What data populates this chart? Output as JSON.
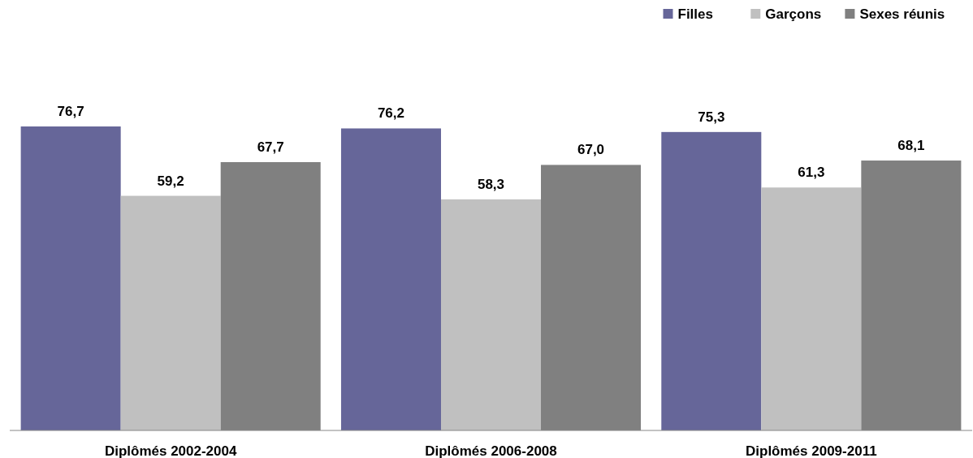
{
  "chart_data": {
    "type": "bar",
    "categories": [
      "Diplômés 2002-2004",
      "Diplômés 2006-2008",
      "Diplômés 2009-2011"
    ],
    "series": [
      {
        "name": "Filles",
        "color": "#666699",
        "values": [
          76.7,
          76.2,
          75.3
        ],
        "value_labels": [
          "76,7",
          "76,2",
          "75,3"
        ]
      },
      {
        "name": "Garçons",
        "color": "#c0c0c0",
        "values": [
          59.2,
          58.3,
          61.3
        ],
        "value_labels": [
          "59,2",
          "58,3",
          "61,3"
        ]
      },
      {
        "name": "Sexes réunis",
        "color": "#808080",
        "values": [
          67.7,
          67.0,
          68.1
        ],
        "value_labels": [
          "67,7",
          "67,0",
          "68,1"
        ]
      }
    ],
    "legend": "top right"
  }
}
